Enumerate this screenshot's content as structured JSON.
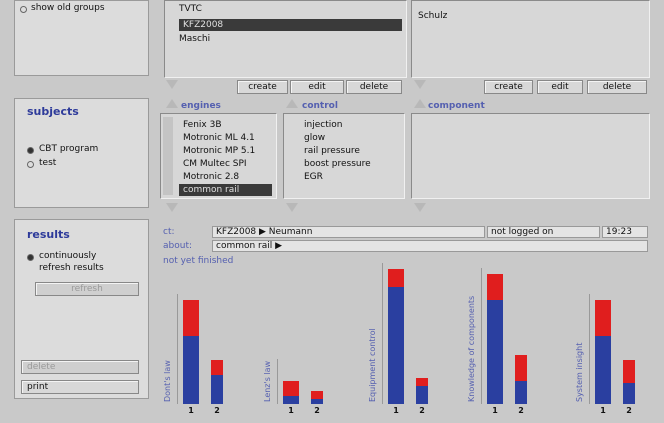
{
  "top_left": {
    "show_old_groups_label": "show old groups"
  },
  "groups_list": {
    "items": [
      {
        "label": "TVTC",
        "selected": false
      },
      {
        "label": "KFZ2008",
        "selected": true
      },
      {
        "label": "Maschi",
        "selected": false
      }
    ],
    "buttons": {
      "create": "create",
      "edit": "edit",
      "delete": "delete"
    }
  },
  "persons_list": {
    "items": [
      {
        "label": "Schulz"
      }
    ],
    "buttons": {
      "create": "create",
      "edit": "edit",
      "delete": "delete"
    }
  },
  "subjects": {
    "title": "subjects",
    "options": [
      {
        "label": "CBT program",
        "selected": true
      },
      {
        "label": "test",
        "selected": false
      }
    ]
  },
  "engines": {
    "header": "engines",
    "items": [
      {
        "label": "Fenix 3B",
        "selected": false
      },
      {
        "label": "Motronic ML 4.1",
        "selected": false
      },
      {
        "label": "Motronic MP 5.1",
        "selected": false
      },
      {
        "label": "CM Multec SPI",
        "selected": false
      },
      {
        "label": "Motronic 2.8",
        "selected": false
      },
      {
        "label": "common rail",
        "selected": true
      }
    ]
  },
  "control": {
    "header": "control",
    "items": [
      "injection",
      "glow",
      "rail pressure",
      "boost pressure",
      "EGR"
    ]
  },
  "component": {
    "header": "component"
  },
  "results": {
    "title": "results",
    "continuously_label": "continuously",
    "refresh_results_label": "refresh results",
    "refresh_button": "refresh",
    "delete_button": "delete",
    "print_button": "print"
  },
  "status": {
    "ct_label": "ct:",
    "ct_value": "KFZ2008 ▶ Neumann",
    "login_status": "not logged on",
    "time": "19:23",
    "about_label": "about:",
    "about_value": "common rail ▶",
    "not_finished": "not yet finished"
  },
  "chart_data": {
    "type": "bar",
    "stacked": true,
    "colors": {
      "blue": "#2a3fa0",
      "red": "#e01e1e"
    },
    "groups": [
      {
        "label": "Dont's law",
        "categories": [
          "1",
          "2"
        ],
        "blue": [
          0.52,
          0.22
        ],
        "red": [
          0.28,
          0.12
        ]
      },
      {
        "label": "Lenz's law",
        "categories": [
          "1",
          "2"
        ],
        "blue": [
          0.06,
          0.04
        ],
        "red": [
          0.12,
          0.06
        ]
      },
      {
        "label": "Equipment control",
        "categories": [
          "1",
          "2"
        ],
        "blue": [
          0.9,
          0.14
        ],
        "red": [
          0.14,
          0.06
        ]
      },
      {
        "label": "Knowledge of components",
        "categories": [
          "1",
          "2"
        ],
        "blue": [
          0.8,
          0.18
        ],
        "red": [
          0.2,
          0.2
        ]
      },
      {
        "label": "System insight",
        "categories": [
          "1",
          "2"
        ],
        "blue": [
          0.52,
          0.16
        ],
        "red": [
          0.28,
          0.18
        ]
      }
    ]
  }
}
